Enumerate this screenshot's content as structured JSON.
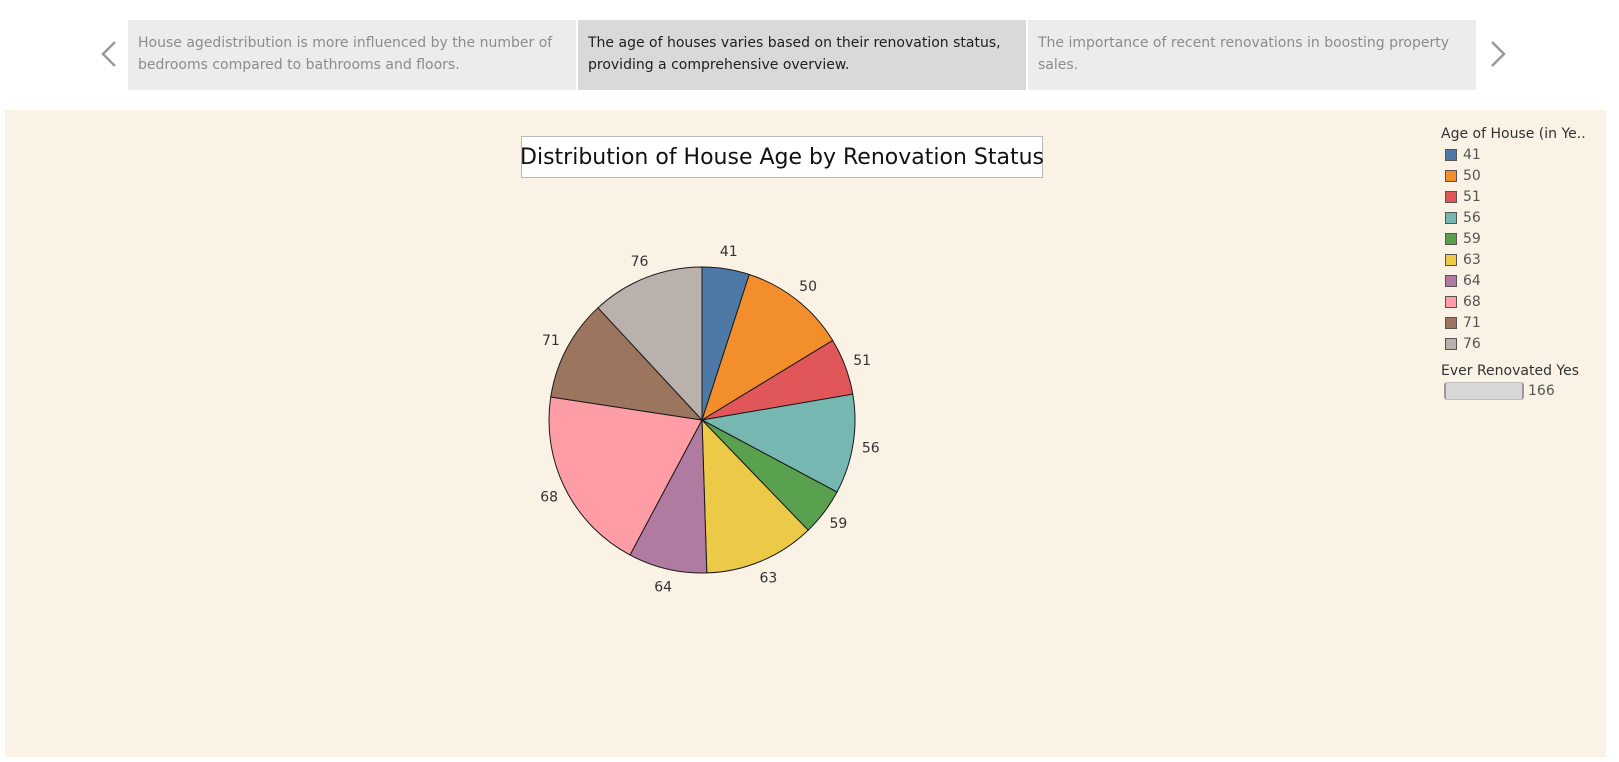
{
  "story": {
    "points": [
      {
        "caption": "House agedistribution is more influenced by the number of bedrooms compared to bathrooms and floors.",
        "active": false
      },
      {
        "caption": "The age of houses varies based on their renovation status, providing a comprehensive overview.",
        "active": true
      },
      {
        "caption": "The importance of recent renovations in boosting property sales.",
        "active": false
      }
    ]
  },
  "legend": {
    "title": "Age of House (in Ye..",
    "items": [
      {
        "label": "41",
        "color": "#4e79a7"
      },
      {
        "label": "50",
        "color": "#f28e2b"
      },
      {
        "label": "51",
        "color": "#e15759"
      },
      {
        "label": "56",
        "color": "#76b7b2"
      },
      {
        "label": "59",
        "color": "#59a14f"
      },
      {
        "label": "63",
        "color": "#edc948"
      },
      {
        "label": "64",
        "color": "#b07aa1"
      },
      {
        "label": "68",
        "color": "#ff9da7"
      },
      {
        "label": "71",
        "color": "#9c755f"
      },
      {
        "label": "76",
        "color": "#bab0ac"
      }
    ],
    "size_title": "Ever Renovated Yes",
    "size_value": "166"
  },
  "chart_data": {
    "type": "pie",
    "title": "Distribution of House Age by Renovation Status",
    "categories": [
      "41",
      "50",
      "51",
      "56",
      "59",
      "63",
      "64",
      "68",
      "71",
      "76"
    ],
    "values": [
      5.0,
      11.3,
      6.0,
      10.5,
      5.0,
      11.7,
      8.3,
      19.6,
      10.7,
      11.9
    ],
    "colors": [
      "#4e79a7",
      "#f28e2b",
      "#e15759",
      "#76b7b2",
      "#59a14f",
      "#edc948",
      "#b07aa1",
      "#ff9da7",
      "#9c755f",
      "#bab0ac"
    ],
    "start": "12 o'clock",
    "direction": "clockwise"
  }
}
